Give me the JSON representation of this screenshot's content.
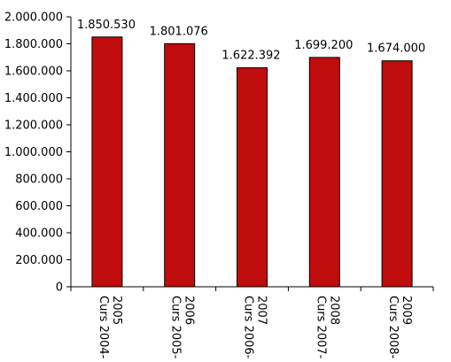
{
  "chart_data": {
    "type": "bar",
    "categories": [
      [
        "Curs 2004-",
        "2005"
      ],
      [
        "Curs 2005-",
        "2006"
      ],
      [
        "Curs 2006-",
        "2007"
      ],
      [
        "Curs 2007-",
        "2008"
      ],
      [
        "Curs 2008-",
        "2009"
      ]
    ],
    "values": [
      1850530,
      1801076,
      1622392,
      1699200,
      1674000
    ],
    "data_labels": [
      "1.850.530",
      "1.801.076",
      "1.622.392",
      "1.699.200",
      "1.674.000"
    ],
    "ylim": [
      0,
      2000000
    ],
    "yticks": [
      0,
      200000,
      400000,
      600000,
      800000,
      1000000,
      1200000,
      1400000,
      1600000,
      1800000,
      2000000
    ],
    "ytick_labels": [
      "0",
      "200.000",
      "400.000",
      "600.000",
      "800.000",
      "1.000.000",
      "1.200.000",
      "1.400.000",
      "1.600.000",
      "1.800.000",
      "2.000.000"
    ],
    "bar_color": "#c00c0c",
    "grid": false,
    "legend": "none"
  }
}
